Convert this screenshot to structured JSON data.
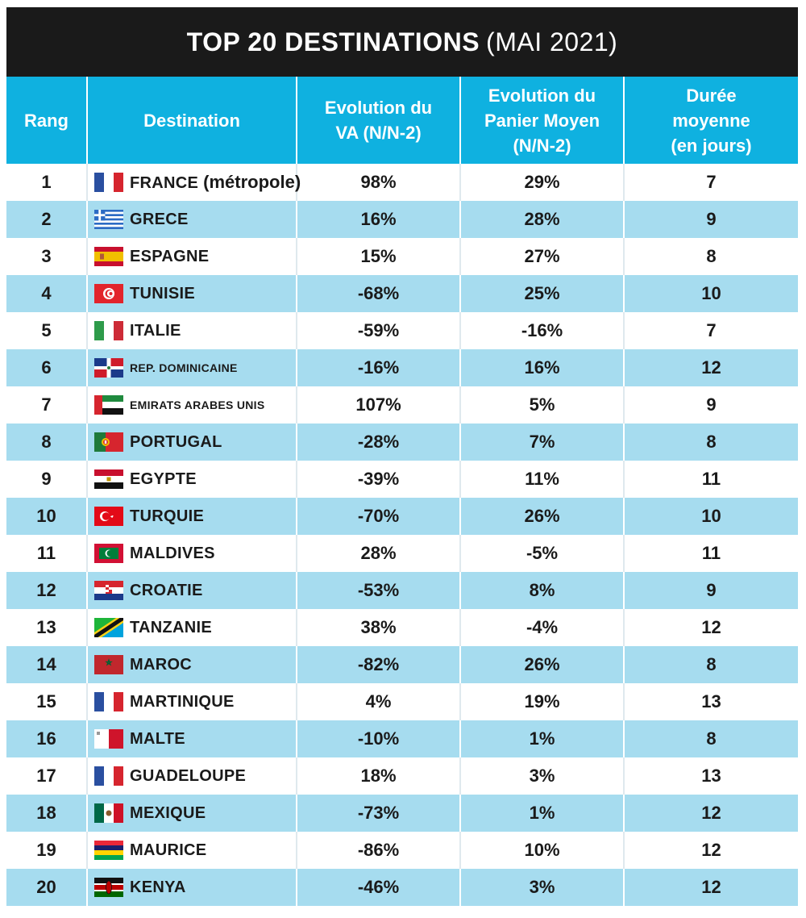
{
  "title": {
    "bold": "TOP 20 DESTINATIONS",
    "normal": "(MAI 2021)"
  },
  "colors": {
    "header_bg": "#0fb1e0",
    "title_bg": "#1a1a1a",
    "row_alt": "#a6dcef"
  },
  "chart_data": {
    "type": "table",
    "columns": [
      "Rang",
      "Destination",
      "Evolution du\nVA (N/N-2)",
      "Evolution du\nPanier Moyen\n(N/N-2)",
      "Durée\nmoyenne\n(en jours)"
    ],
    "rows": [
      {
        "rang": "1",
        "destination": "FRANCE",
        "extra": "(métropole)",
        "flag": "france-flag",
        "va": "98%",
        "panier": "29%",
        "duree": "7"
      },
      {
        "rang": "2",
        "destination": "GRECE",
        "flag": "greece-flag",
        "va": "16%",
        "panier": "28%",
        "duree": "9"
      },
      {
        "rang": "3",
        "destination": "ESPAGNE",
        "flag": "spain-flag",
        "va": "15%",
        "panier": "27%",
        "duree": "8"
      },
      {
        "rang": "4",
        "destination": "TUNISIE",
        "flag": "tunisia-flag",
        "va": "-68%",
        "panier": "25%",
        "duree": "10"
      },
      {
        "rang": "5",
        "destination": "ITALIE",
        "flag": "italy-flag",
        "va": "-59%",
        "panier": "-16%",
        "duree": "7"
      },
      {
        "rang": "6",
        "destination": "REP. DOMINICAINE",
        "flag": "dominican-republic-flag",
        "va": "-16%",
        "panier": "16%",
        "duree": "12"
      },
      {
        "rang": "7",
        "destination": "EMIRATS ARABES UNIS",
        "flag": "uae-flag",
        "va": "107%",
        "panier": "5%",
        "duree": "9"
      },
      {
        "rang": "8",
        "destination": "PORTUGAL",
        "flag": "portugal-flag",
        "va": "-28%",
        "panier": "7%",
        "duree": "8"
      },
      {
        "rang": "9",
        "destination": "EGYPTE",
        "flag": "egypt-flag",
        "va": "-39%",
        "panier": "11%",
        "duree": "11"
      },
      {
        "rang": "10",
        "destination": "TURQUIE",
        "flag": "turkey-flag",
        "va": "-70%",
        "panier": "26%",
        "duree": "10"
      },
      {
        "rang": "11",
        "destination": "MALDIVES",
        "flag": "maldives-flag",
        "va": "28%",
        "panier": "-5%",
        "duree": "11"
      },
      {
        "rang": "12",
        "destination": "CROATIE",
        "flag": "croatia-flag",
        "va": "-53%",
        "panier": "8%",
        "duree": "9"
      },
      {
        "rang": "13",
        "destination": "TANZANIE",
        "flag": "tanzania-flag",
        "va": "38%",
        "panier": "-4%",
        "duree": "12"
      },
      {
        "rang": "14",
        "destination": "MAROC",
        "flag": "morocco-flag",
        "va": "-82%",
        "panier": "26%",
        "duree": "8"
      },
      {
        "rang": "15",
        "destination": "MARTINIQUE",
        "flag": "france-flag",
        "va": "4%",
        "panier": "19%",
        "duree": "13"
      },
      {
        "rang": "16",
        "destination": "MALTE",
        "flag": "malta-flag",
        "va": "-10%",
        "panier": "1%",
        "duree": "8"
      },
      {
        "rang": "17",
        "destination": "GUADELOUPE",
        "flag": "france-flag",
        "va": "18%",
        "panier": "3%",
        "duree": "13"
      },
      {
        "rang": "18",
        "destination": "MEXIQUE",
        "flag": "mexico-flag",
        "va": "-73%",
        "panier": "1%",
        "duree": "12"
      },
      {
        "rang": "19",
        "destination": "MAURICE",
        "flag": "mauritius-flag",
        "va": "-86%",
        "panier": "10%",
        "duree": "12"
      },
      {
        "rang": "20",
        "destination": "KENYA",
        "flag": "kenya-flag",
        "va": "-46%",
        "panier": "3%",
        "duree": "12"
      }
    ]
  }
}
